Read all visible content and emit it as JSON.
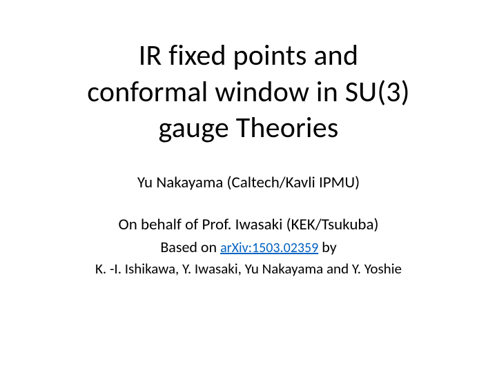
{
  "slide": {
    "title_line1": "IR fixed points and",
    "title_line2": "conformal window in SU(3)",
    "title_line3": "gauge Theories",
    "presenter": "Yu Nakayama (Caltech/Kavli IPMU)",
    "behalf": "On behalf of Prof. Iwasaki (KEK/Tsukuba)",
    "based_prefix": "Based on ",
    "arxiv_ref": "arXiv:1503.02359",
    "based_suffix": "   by",
    "authors": "K. -I. Ishikawa,  Y. Iwasaki, Yu Nakayama and Y. Yoshie"
  },
  "style": {
    "background_color": "#ffffff",
    "text_color": "#000000",
    "link_color": "#0563c1",
    "title_fontsize": 42,
    "body_fontsize": 23,
    "authors_fontsize": 21,
    "arxiv_fontsize": 20,
    "font_family": "Calibri"
  }
}
